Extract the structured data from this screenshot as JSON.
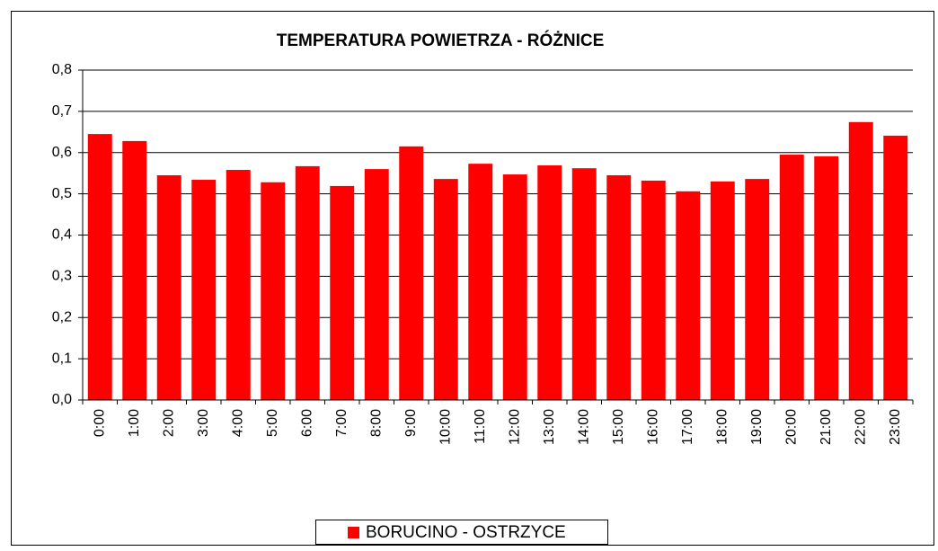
{
  "chart_data": {
    "type": "bar",
    "title": "TEMPERATURA POWIETRZA - RÓŻNICE",
    "categories": [
      "0:00",
      "1:00",
      "2:00",
      "3:00",
      "4:00",
      "5:00",
      "6:00",
      "7:00",
      "8:00",
      "9:00",
      "10:00",
      "11:00",
      "12:00",
      "13:00",
      "14:00",
      "15:00",
      "16:00",
      "17:00",
      "18:00",
      "19:00",
      "20:00",
      "21:00",
      "22:00",
      "23:00"
    ],
    "series": [
      {
        "name": "BORUCINO - OSTRZYCE",
        "color": "#ff0000",
        "values": [
          0.645,
          0.628,
          0.545,
          0.534,
          0.558,
          0.528,
          0.567,
          0.519,
          0.56,
          0.615,
          0.536,
          0.573,
          0.547,
          0.569,
          0.562,
          0.545,
          0.532,
          0.506,
          0.53,
          0.536,
          0.595,
          0.591,
          0.674,
          0.641
        ]
      }
    ],
    "ylim": [
      0,
      0.8
    ],
    "yticks": [
      {
        "value": 0,
        "label": "0,0"
      },
      {
        "value": 0.1,
        "label": "0,1"
      },
      {
        "value": 0.2,
        "label": "0,2"
      },
      {
        "value": 0.3,
        "label": "0,3"
      },
      {
        "value": 0.4,
        "label": "0,4"
      },
      {
        "value": 0.5,
        "label": "0,5"
      },
      {
        "value": 0.6,
        "label": "0,6"
      },
      {
        "value": 0.7,
        "label": "0,7"
      },
      {
        "value": 0.8,
        "label": "0,8"
      }
    ],
    "grid": true,
    "legend": "bottom"
  }
}
